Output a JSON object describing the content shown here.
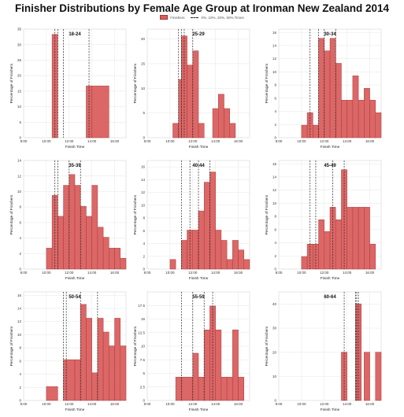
{
  "title": "Finisher Distributions by Female Age Group at Ironman New Zealand 2014",
  "legend": {
    "bars": "Finishers",
    "lines": "0%, 10%, 20%, 50% Times"
  },
  "colors": {
    "bar": "#d95f5f",
    "bar_stroke": "#b03a3a",
    "grid": "#e6e6e6",
    "line": "#222222"
  },
  "chart_data": [
    {
      "type": "bar",
      "title": "18-24",
      "xlabel": "Finish Time",
      "ylabel": "Percentage of Finishers",
      "xlim": [
        8,
        17
      ],
      "ylim": [
        0,
        35
      ],
      "yticks": [
        0,
        5,
        10,
        15,
        20,
        25,
        30,
        35
      ],
      "xticks": [
        "8:00",
        "10:00",
        "12:00",
        "14:00",
        "16:00"
      ],
      "bins": [
        [
          10.5,
          11.0,
          33.3
        ],
        [
          13.5,
          14.0,
          16.7
        ],
        [
          14.0,
          15.5,
          16.7
        ]
      ],
      "vlines": [
        10.75,
        11.0,
        11.5,
        13.75
      ]
    },
    {
      "type": "bar",
      "title": "25-29",
      "xlabel": "Finish Time",
      "ylabel": "Percentage of Finishers",
      "xlim": [
        8,
        17
      ],
      "ylim": [
        0,
        22
      ],
      "yticks": [
        0,
        5,
        10,
        15,
        20
      ],
      "xticks": [
        "8:00",
        "10:00",
        "12:00",
        "14:00",
        "16:00"
      ],
      "bins": [
        [
          10.25,
          10.75,
          2.9
        ],
        [
          10.75,
          11.0,
          11.8
        ],
        [
          11.0,
          11.5,
          20.6
        ],
        [
          11.5,
          12.0,
          14.7
        ],
        [
          12.0,
          12.5,
          17.6
        ],
        [
          12.5,
          13.0,
          2.9
        ],
        [
          13.75,
          14.25,
          5.9
        ],
        [
          14.25,
          14.75,
          8.8
        ],
        [
          14.75,
          15.25,
          5.9
        ],
        [
          15.25,
          15.75,
          2.9
        ]
      ],
      "vlines": [
        10.75,
        11.0,
        11.25,
        12.0
      ]
    },
    {
      "type": "bar",
      "title": "30-34",
      "xlabel": "Finish Time",
      "ylabel": "Percentage of Finishers",
      "xlim": [
        8,
        17
      ],
      "ylim": [
        0,
        16.5
      ],
      "yticks": [
        0,
        2,
        4,
        6,
        8,
        10,
        12,
        14,
        16
      ],
      "xticks": [
        "8:00",
        "10:00",
        "12:00",
        "14:00",
        "16:00"
      ],
      "bins": [
        [
          10.0,
          10.5,
          1.9
        ],
        [
          10.5,
          11.0,
          3.8
        ],
        [
          11.0,
          11.5,
          1.9
        ],
        [
          11.5,
          12.0,
          15.1
        ],
        [
          12.0,
          12.5,
          13.2
        ],
        [
          12.5,
          13.0,
          15.1
        ],
        [
          13.0,
          13.5,
          11.3
        ],
        [
          13.5,
          14.0,
          5.7
        ],
        [
          14.0,
          14.5,
          5.7
        ],
        [
          14.5,
          15.0,
          9.4
        ],
        [
          15.0,
          15.5,
          5.7
        ],
        [
          15.5,
          16.0,
          7.5
        ],
        [
          16.0,
          16.5,
          5.7
        ],
        [
          16.5,
          17.0,
          3.8
        ]
      ],
      "vlines": [
        10.75,
        11.5,
        12.0,
        13.0
      ]
    },
    {
      "type": "bar",
      "title": "35-39",
      "xlabel": "Finish Time",
      "ylabel": "Percentage of Finishers",
      "xlim": [
        8,
        17
      ],
      "ylim": [
        0,
        14
      ],
      "yticks": [
        0,
        2,
        4,
        6,
        8,
        10,
        12,
        14
      ],
      "xticks": [
        "8:00",
        "10:00",
        "12:00",
        "14:00",
        "16:00"
      ],
      "bins": [
        [
          10.0,
          10.5,
          2.7
        ],
        [
          10.5,
          11.0,
          9.5
        ],
        [
          11.0,
          11.5,
          6.8
        ],
        [
          11.5,
          12.0,
          10.8
        ],
        [
          12.0,
          12.5,
          12.2
        ],
        [
          12.5,
          13.0,
          10.8
        ],
        [
          13.0,
          13.5,
          8.1
        ],
        [
          13.5,
          14.0,
          6.8
        ],
        [
          14.0,
          14.5,
          10.8
        ],
        [
          14.5,
          15.0,
          5.4
        ],
        [
          15.0,
          15.5,
          4.1
        ],
        [
          15.5,
          16.0,
          2.7
        ],
        [
          16.0,
          16.5,
          2.7
        ],
        [
          16.5,
          17.0,
          1.4
        ]
      ],
      "vlines": [
        10.75,
        11.0,
        12.0,
        13.0
      ]
    },
    {
      "type": "bar",
      "title": "40-44",
      "xlabel": "Finish Time",
      "ylabel": "Percentage of Finishers",
      "xlim": [
        8,
        17
      ],
      "ylim": [
        0,
        17
      ],
      "yticks": [
        0,
        2,
        4,
        6,
        8,
        10,
        12,
        14,
        16
      ],
      "xticks": [
        "8:00",
        "10:00",
        "12:00",
        "14:00",
        "16:00"
      ],
      "bins": [
        [
          10.0,
          10.5,
          1.5
        ],
        [
          11.0,
          11.5,
          4.5
        ],
        [
          11.5,
          12.0,
          6.1
        ],
        [
          12.0,
          12.5,
          6.1
        ],
        [
          12.5,
          13.0,
          9.1
        ],
        [
          13.0,
          13.5,
          13.6
        ],
        [
          13.5,
          14.0,
          15.2
        ],
        [
          14.0,
          14.5,
          6.1
        ],
        [
          14.5,
          15.0,
          4.5
        ],
        [
          15.0,
          15.5,
          1.5
        ],
        [
          15.5,
          16.0,
          4.5
        ],
        [
          16.0,
          16.5,
          3.0
        ],
        [
          16.5,
          17.0,
          1.5
        ]
      ],
      "vlines": [
        11.0,
        11.75,
        12.5,
        13.5
      ]
    },
    {
      "type": "bar",
      "title": "45-49",
      "xlabel": "Finish Time",
      "ylabel": "Percentage of Finishers",
      "xlim": [
        8,
        17
      ],
      "ylim": [
        0,
        16.5
      ],
      "yticks": [
        0,
        2,
        4,
        6,
        8,
        10,
        12,
        14,
        16
      ],
      "xticks": [
        "8:00",
        "10:00",
        "12:00",
        "14:00",
        "16:00"
      ],
      "bins": [
        [
          10.0,
          10.5,
          1.9
        ],
        [
          10.5,
          11.0,
          3.8
        ],
        [
          11.0,
          11.5,
          3.8
        ],
        [
          11.5,
          12.0,
          7.5
        ],
        [
          12.0,
          12.5,
          5.7
        ],
        [
          12.5,
          13.0,
          9.4
        ],
        [
          13.0,
          13.5,
          7.5
        ],
        [
          13.5,
          14.0,
          15.1
        ],
        [
          14.0,
          14.5,
          9.4
        ],
        [
          14.5,
          15.0,
          9.4
        ],
        [
          15.0,
          15.5,
          9.4
        ],
        [
          15.5,
          16.0,
          9.4
        ],
        [
          16.0,
          16.5,
          3.8
        ]
      ],
      "vlines": [
        10.75,
        11.25,
        12.75,
        13.75
      ]
    },
    {
      "type": "bar",
      "title": "50-54",
      "xlabel": "Finish Time",
      "ylabel": "Percentage of Finishers",
      "xlim": [
        8,
        17
      ],
      "ylim": [
        0,
        16.5
      ],
      "yticks": [
        0,
        2,
        4,
        6,
        8,
        10,
        12,
        14,
        16
      ],
      "xticks": [
        "8:00",
        "10:00",
        "12:00",
        "14:00",
        "16:00"
      ],
      "bins": [
        [
          10.0,
          11.0,
          2.1
        ],
        [
          11.5,
          12.5,
          6.2
        ],
        [
          12.5,
          13.0,
          6.2
        ],
        [
          13.0,
          13.5,
          14.6
        ],
        [
          13.5,
          14.0,
          12.5
        ],
        [
          14.0,
          14.5,
          4.2
        ],
        [
          14.5,
          15.0,
          12.5
        ],
        [
          15.0,
          15.5,
          10.4
        ],
        [
          15.5,
          16.0,
          8.3
        ],
        [
          16.0,
          16.5,
          12.5
        ],
        [
          16.5,
          17.0,
          8.3
        ]
      ],
      "vlines": [
        11.5,
        11.75,
        13.0,
        14.5
      ]
    },
    {
      "type": "bar",
      "title": "55-59",
      "xlabel": "Finish Time",
      "ylabel": "Percentage of Finishers",
      "xlim": [
        8,
        17
      ],
      "ylim": [
        0,
        20
      ],
      "yticks": [
        0,
        2.5,
        5,
        7.5,
        10,
        12.5,
        15,
        17.5
      ],
      "xticks": [
        "8:00",
        "10:00",
        "12:00",
        "14:00",
        "16:00"
      ],
      "bins": [
        [
          10.5,
          11.0,
          4.3
        ],
        [
          11.0,
          12.0,
          4.3
        ],
        [
          12.0,
          12.5,
          8.7
        ],
        [
          12.5,
          13.0,
          4.3
        ],
        [
          13.0,
          13.5,
          13.0
        ],
        [
          13.5,
          14.0,
          17.4
        ],
        [
          14.0,
          14.5,
          13.0
        ],
        [
          14.5,
          15.0,
          4.3
        ],
        [
          15.0,
          15.5,
          4.3
        ],
        [
          15.5,
          16.0,
          13.0
        ],
        [
          16.0,
          16.5,
          4.3
        ]
      ],
      "vlines": [
        11.0,
        12.0,
        13.0,
        13.75
      ]
    },
    {
      "type": "bar",
      "title": "60-64",
      "xlabel": "Finish Time",
      "ylabel": "Percentage of Finishers",
      "xlim": [
        8,
        17
      ],
      "ylim": [
        0,
        45
      ],
      "yticks": [
        0,
        10,
        20,
        30,
        40
      ],
      "xticks": [
        "8:00",
        "10:00",
        "12:00",
        "14:00",
        "16:00"
      ],
      "bins": [
        [
          13.5,
          14.0,
          20
        ],
        [
          14.75,
          15.25,
          40
        ],
        [
          15.5,
          16.0,
          20
        ],
        [
          16.5,
          17.0,
          20
        ]
      ],
      "vlines": [
        13.75,
        14.75,
        14.85,
        15.0
      ]
    }
  ]
}
